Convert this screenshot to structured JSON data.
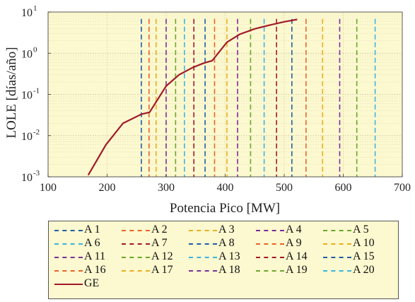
{
  "chart_data": {
    "type": "line",
    "xlabel": "Potencia Pico [MW]",
    "ylabel": "LOLE [días/año]",
    "xlim": [
      100,
      700
    ],
    "xticks": [
      "100",
      "200",
      "300",
      "400",
      "500",
      "600",
      "700"
    ],
    "ylim": [
      0.001,
      10
    ],
    "yscale": "log",
    "yticks": [
      {
        "base": "10",
        "exp": "-3",
        "value": 0.001
      },
      {
        "base": "10",
        "exp": "-2",
        "value": 0.01
      },
      {
        "base": "10",
        "exp": "-1",
        "value": 0.1
      },
      {
        "base": "10",
        "exp": "0",
        "value": 1
      },
      {
        "base": "10",
        "exp": "1",
        "value": 10
      }
    ],
    "grid": true,
    "background": "#fcf8cf",
    "legend_position": "bottom",
    "series": [
      {
        "name": "GE",
        "color": "#a01a2a",
        "style": "solid",
        "x": [
          168,
          198,
          227,
          258,
          272,
          300,
          322,
          345,
          363,
          378,
          403,
          425,
          450,
          475,
          500,
          522
        ],
        "y": [
          0.0011,
          0.006,
          0.02,
          0.033,
          0.037,
          0.16,
          0.3,
          0.45,
          0.57,
          0.66,
          1.85,
          2.9,
          3.9,
          4.8,
          5.8,
          6.6
        ]
      }
    ],
    "vlines": [
      {
        "name": "A 1",
        "x": 258,
        "color": "#1f5fa8"
      },
      {
        "name": "A 2",
        "x": 271,
        "color": "#e8642a"
      },
      {
        "name": "A 3",
        "x": 283,
        "color": "#e8b020"
      },
      {
        "name": "A 4",
        "x": 300,
        "color": "#7a2f9a"
      },
      {
        "name": "A 5",
        "x": 316,
        "color": "#6aa82e"
      },
      {
        "name": "A 6",
        "x": 331,
        "color": "#3cb4e0"
      },
      {
        "name": "A 7",
        "x": 347,
        "color": "#a01a2a"
      },
      {
        "name": "A 8",
        "x": 366,
        "color": "#1f5fa8"
      },
      {
        "name": "A 9",
        "x": 382,
        "color": "#e8642a"
      },
      {
        "name": "A 10",
        "x": 403,
        "color": "#e8b020"
      },
      {
        "name": "A 11",
        "x": 421,
        "color": "#7a2f9a"
      },
      {
        "name": "A 12",
        "x": 443,
        "color": "#6aa82e"
      },
      {
        "name": "A 13",
        "x": 466,
        "color": "#3cb4e0"
      },
      {
        "name": "A 14",
        "x": 487,
        "color": "#a01a2a"
      },
      {
        "name": "A 15",
        "x": 513,
        "color": "#1f5fa8"
      },
      {
        "name": "A 16",
        "x": 537,
        "color": "#e8642a"
      },
      {
        "name": "A 17",
        "x": 565,
        "color": "#e8b020"
      },
      {
        "name": "A 18",
        "x": 594,
        "color": "#7a2f9a"
      },
      {
        "name": "A 19",
        "x": 623,
        "color": "#6aa82e"
      },
      {
        "name": "A 20",
        "x": 654,
        "color": "#3cb4e0"
      }
    ],
    "vline_top": 6.8
  }
}
